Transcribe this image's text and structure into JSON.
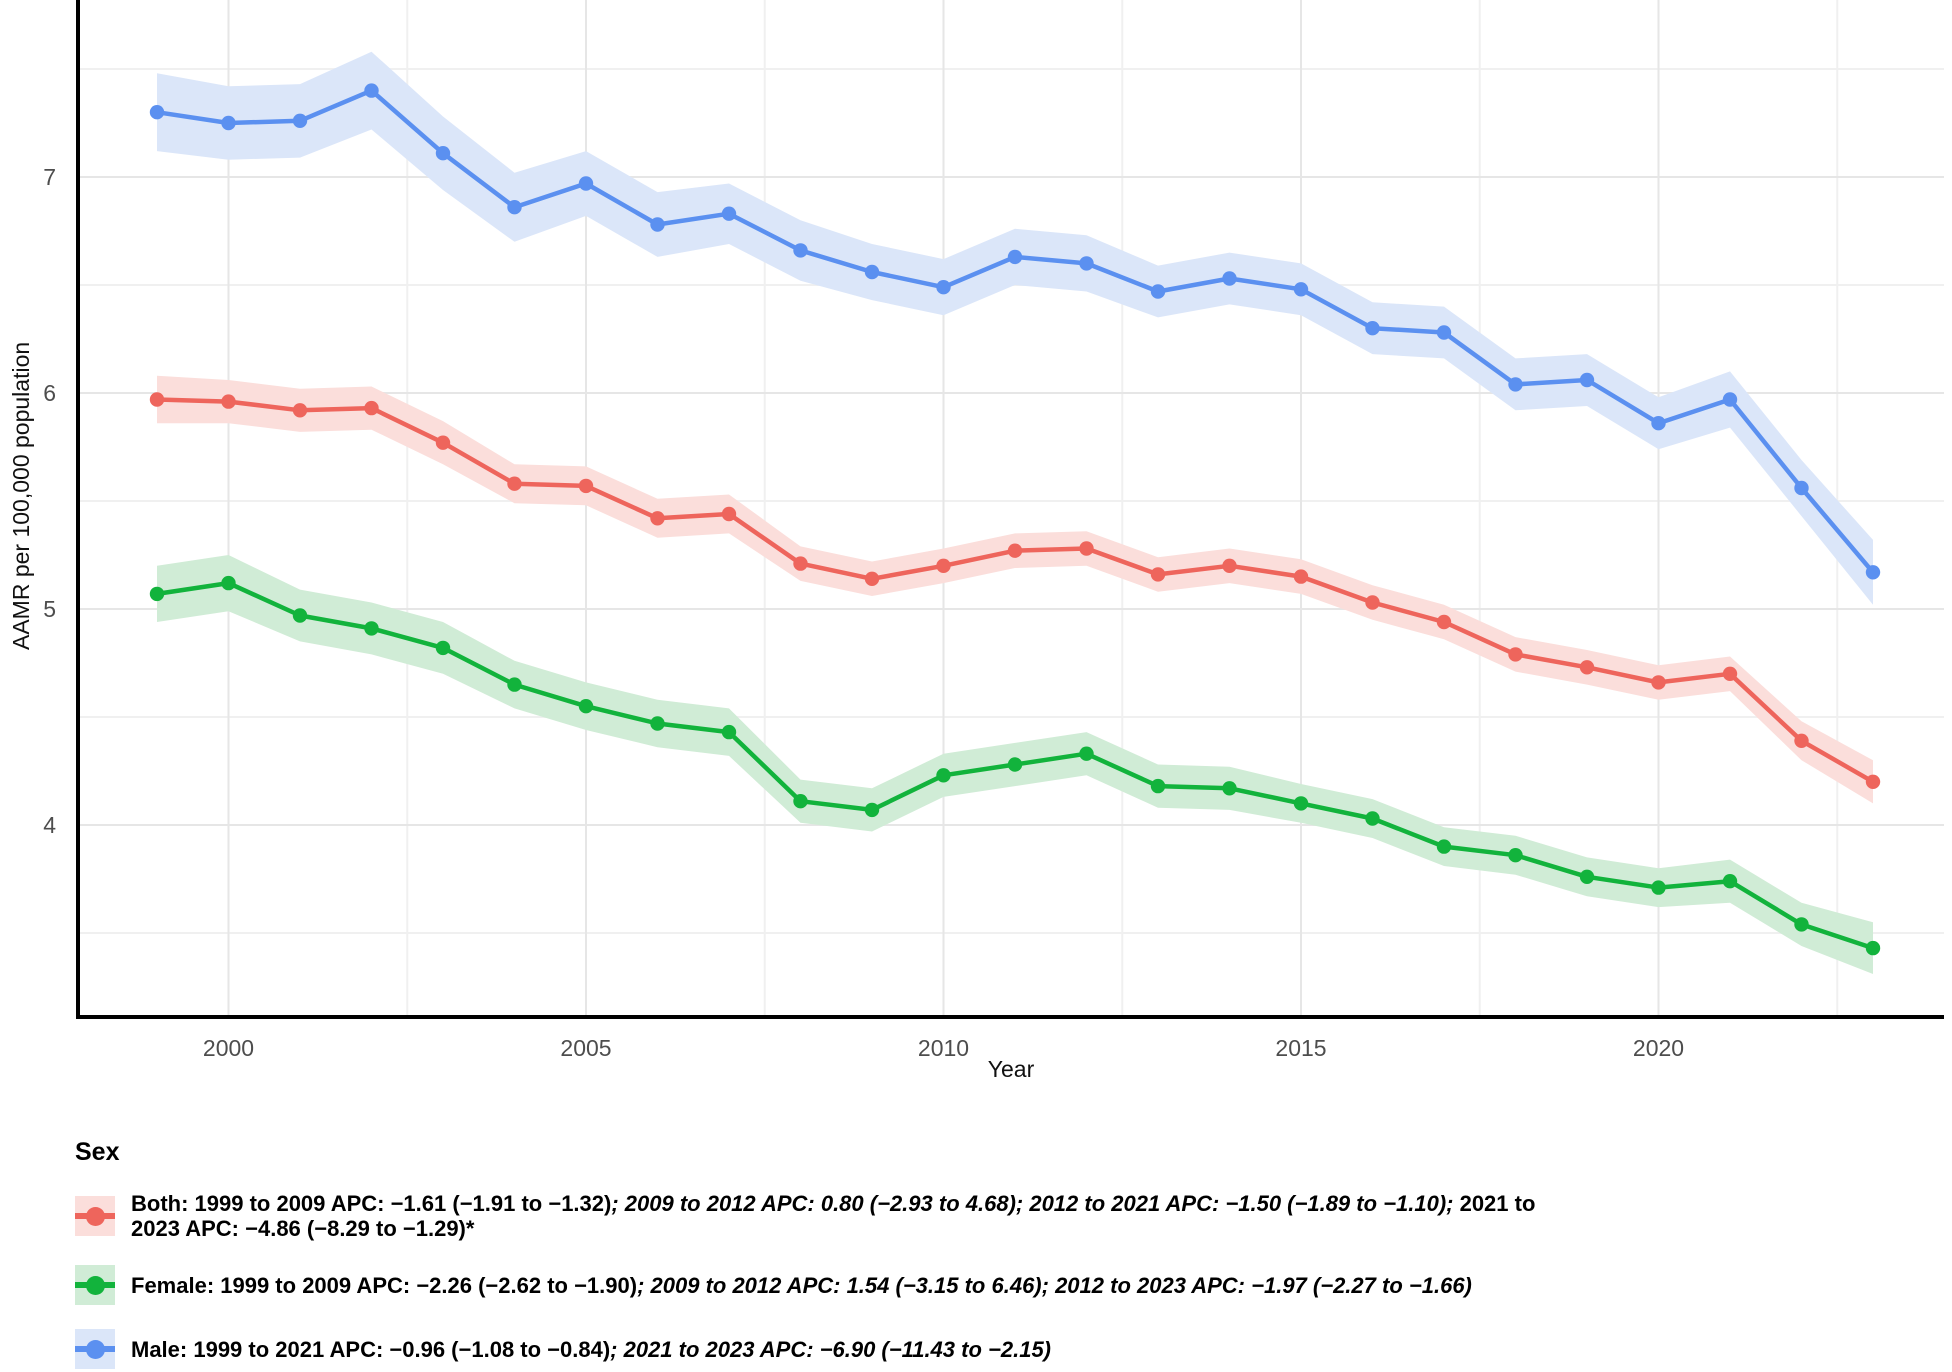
{
  "chart_data": {
    "type": "line",
    "title": "",
    "xlabel": "Year",
    "ylabel": "AAMR per 100,000 population",
    "x": [
      1999,
      2000,
      2001,
      2002,
      2003,
      2004,
      2005,
      2006,
      2007,
      2008,
      2009,
      2010,
      2011,
      2012,
      2013,
      2014,
      2015,
      2016,
      2017,
      2018,
      2019,
      2020,
      2021,
      2022,
      2023
    ],
    "xticks": [
      2000,
      2005,
      2010,
      2015,
      2020
    ],
    "xticks_minor": [
      2002.5,
      2007.5,
      2012.5,
      2017.5,
      2022.5
    ],
    "yticks": [
      7,
      6,
      5,
      4
    ],
    "yticks_minor": [
      7.5,
      6.5,
      5.5,
      4.5,
      3.5
    ],
    "ylim": [
      3.11,
      7.82
    ],
    "xlim": [
      1997.9,
      2023.95
    ],
    "grid": "major and minor, light gray, white panel, black L-shaped axis lines",
    "legend_position": "bottom-left",
    "series": [
      {
        "id": "both",
        "name": "Both",
        "color": "#EE655C",
        "fill": "#FBDEDB",
        "values": [
          5.97,
          5.96,
          5.92,
          5.93,
          5.77,
          5.58,
          5.57,
          5.42,
          5.44,
          5.21,
          5.14,
          5.2,
          5.27,
          5.28,
          5.16,
          5.2,
          5.15,
          5.03,
          4.94,
          4.79,
          4.73,
          4.66,
          4.7,
          4.39,
          4.2
        ],
        "ci_halfwidth": [
          0.11,
          0.1,
          0.1,
          0.1,
          0.1,
          0.09,
          0.09,
          0.09,
          0.09,
          0.08,
          0.08,
          0.08,
          0.08,
          0.08,
          0.08,
          0.08,
          0.08,
          0.08,
          0.08,
          0.08,
          0.08,
          0.08,
          0.08,
          0.09,
          0.1
        ]
      },
      {
        "id": "female",
        "name": "Female",
        "color": "#12B33C",
        "fill": "#D0ECD6",
        "values": [
          5.07,
          5.12,
          4.97,
          4.91,
          4.82,
          4.65,
          4.55,
          4.47,
          4.43,
          4.11,
          4.07,
          4.23,
          4.28,
          4.33,
          4.18,
          4.17,
          4.1,
          4.03,
          3.9,
          3.86,
          3.76,
          3.71,
          3.74,
          3.54,
          3.43
        ],
        "ci_halfwidth": [
          0.13,
          0.13,
          0.12,
          0.12,
          0.12,
          0.11,
          0.11,
          0.11,
          0.11,
          0.1,
          0.1,
          0.1,
          0.1,
          0.1,
          0.1,
          0.1,
          0.09,
          0.09,
          0.09,
          0.09,
          0.09,
          0.09,
          0.1,
          0.1,
          0.12
        ]
      },
      {
        "id": "male",
        "name": "Male",
        "color": "#5B90F0",
        "fill": "#DBE6F9",
        "values": [
          7.3,
          7.25,
          7.26,
          7.4,
          7.11,
          6.86,
          6.97,
          6.78,
          6.83,
          6.66,
          6.56,
          6.49,
          6.63,
          6.6,
          6.47,
          6.53,
          6.48,
          6.3,
          6.28,
          6.04,
          6.06,
          5.86,
          5.97,
          5.56,
          5.17
        ],
        "ci_halfwidth": [
          0.18,
          0.17,
          0.17,
          0.18,
          0.17,
          0.16,
          0.15,
          0.15,
          0.14,
          0.14,
          0.13,
          0.13,
          0.13,
          0.13,
          0.12,
          0.12,
          0.12,
          0.12,
          0.12,
          0.12,
          0.12,
          0.12,
          0.13,
          0.13,
          0.15
        ]
      }
    ]
  },
  "legend": {
    "title": "Sex",
    "entries": [
      {
        "series_id": "both",
        "segments": [
          {
            "text": "Both: 1999 to 2009 APC: −1.61 (−1.91 to −1.32)",
            "italic": false
          },
          {
            "text": "; 2009 to 2012 APC: 0.80 (−2.93 to 4.68); 2012 to 2021 APC: −1.50 (−1.89 to −1.10);",
            "italic": true
          },
          {
            "text": " 2021 to",
            "italic": false
          },
          {
            "text": "2023 APC: −4.86 (−8.29 to −1.29)*",
            "italic": false,
            "new_line": true
          }
        ]
      },
      {
        "series_id": "female",
        "segments": [
          {
            "text": "Female: 1999 to 2009 APC: −2.26 (−2.62 to −1.90)",
            "italic": false
          },
          {
            "text": "; 2009 to 2012 APC: 1.54 (−3.15 to 6.46); 2012 to 2023 APC: −1.97 (−2.27 to −1.66)",
            "italic": true
          }
        ]
      },
      {
        "series_id": "male",
        "segments": [
          {
            "text": "Male: 1999 to 2021 APC: −0.96 (−1.08 to −0.84)",
            "italic": false
          },
          {
            "text": "; 2021 to 2023 APC: −6.90 (−11.43 to −2.15)",
            "italic": true
          }
        ]
      }
    ]
  }
}
